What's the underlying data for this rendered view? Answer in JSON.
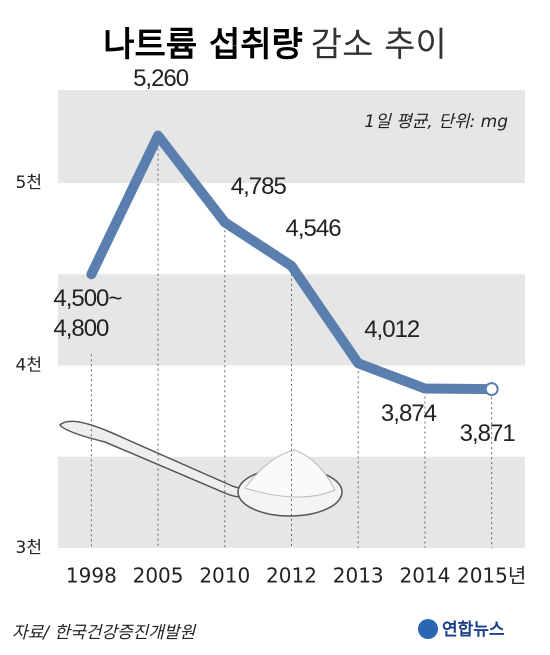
{
  "chart_data": {
    "type": "line",
    "title": "나트륨 섭취량",
    "title_suffix": "감소 추이",
    "note": "1일 평균, 단위: mg",
    "source": "자료/ 한국건강증진개발원",
    "logo": "연합뉴스",
    "categories": [
      "1998",
      "2005",
      "2010",
      "2012",
      "2013",
      "2014",
      "2015년"
    ],
    "values": [
      4500,
      5260,
      4785,
      4546,
      4012,
      3874,
      3871
    ],
    "value_labels": [
      "4,500~\n4,800",
      "5,260",
      "4,785",
      "4,546",
      "4,012",
      "3,874",
      "3,871"
    ],
    "color": "#5a7fae",
    "ylim": [
      3000,
      5510
    ],
    "yticks": [
      {
        "value": 3000,
        "label": "3천"
      },
      {
        "value": 4000,
        "label": "4천"
      },
      {
        "value": 5000,
        "label": "5천"
      }
    ]
  }
}
